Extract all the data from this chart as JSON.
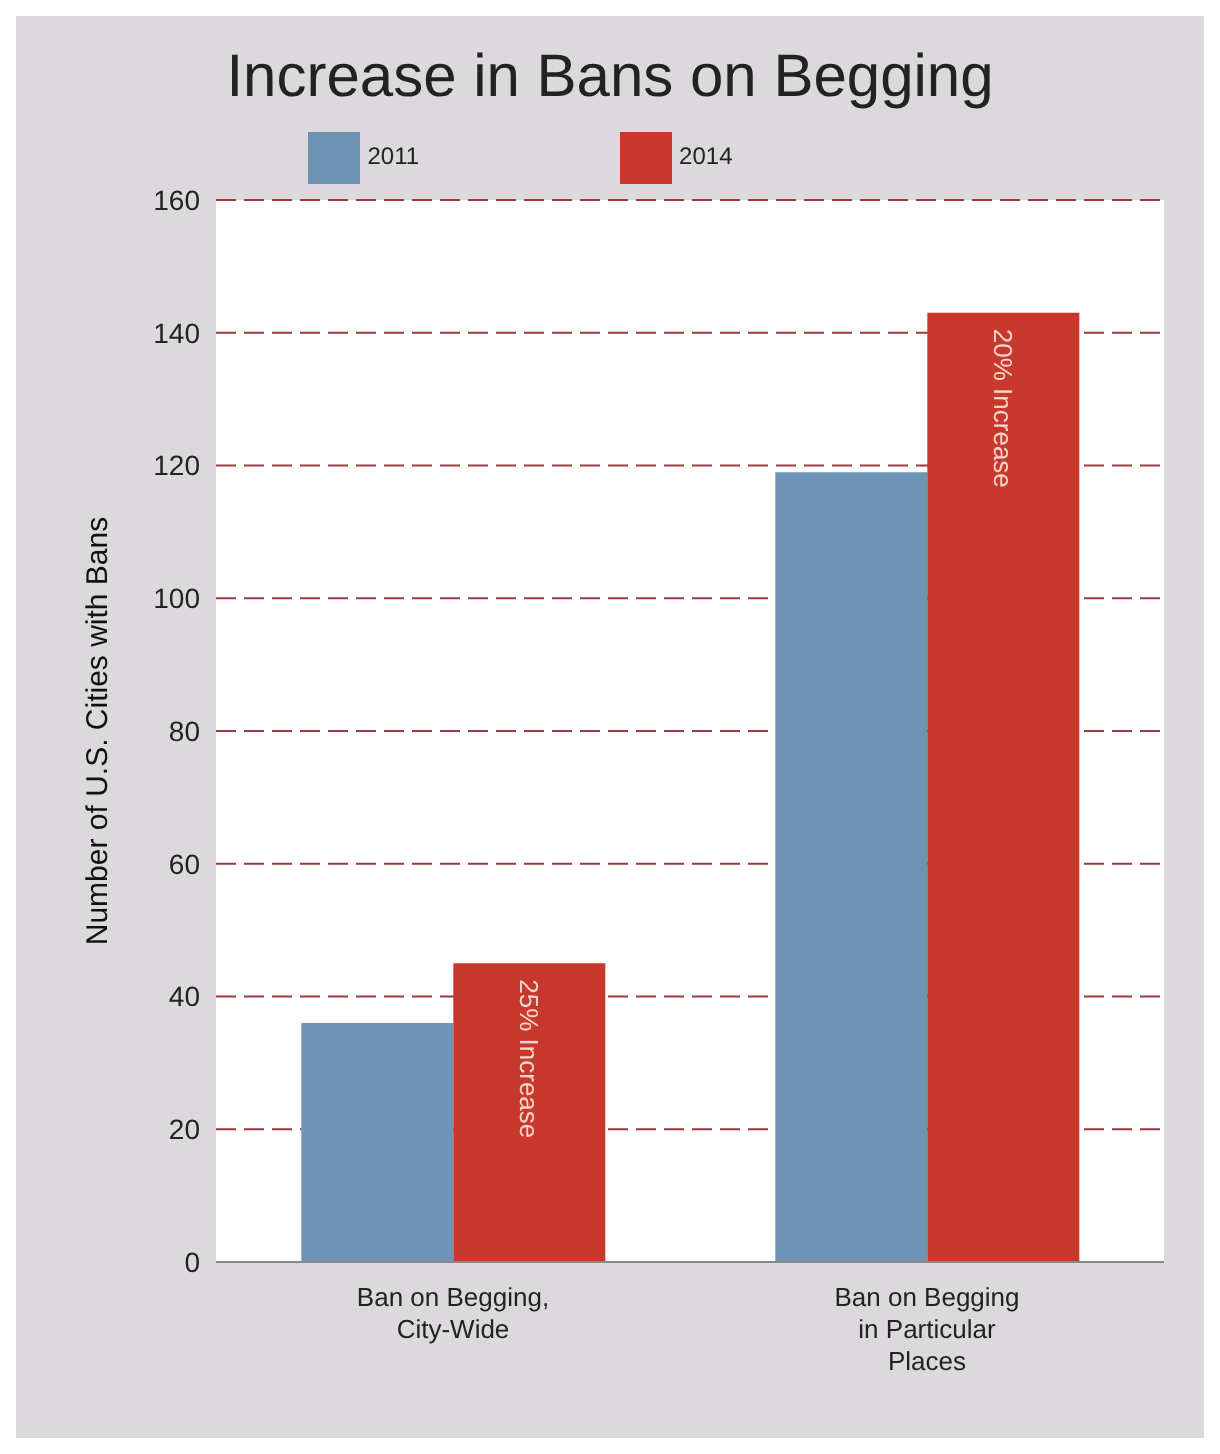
{
  "chart_data": {
    "type": "bar",
    "title": "Increase in Bans on Begging",
    "ylabel": "Number of U.S. Cities with Bans",
    "categories": [
      "Ban on Begging,\nCity-Wide",
      "Ban on Begging\nin Particular\nPlaces"
    ],
    "series": [
      {
        "name": "2011",
        "color": "#6f93b4",
        "values": [
          36,
          119
        ]
      },
      {
        "name": "2014",
        "color": "#c8382c",
        "values": [
          45,
          143
        ]
      }
    ],
    "annotations": [
      {
        "text": "25% Increase",
        "x": "Ban on Begging,\nCity-Wide",
        "y": 45
      },
      {
        "text": "20% Increase",
        "x": "Ban on Begging\nin Particular\nPlaces",
        "y": 143
      }
    ],
    "ylim": [
      0,
      160
    ],
    "yticks": [
      0,
      20,
      40,
      60,
      80,
      100,
      120,
      140,
      160
    ],
    "grid": "y",
    "legend": "top"
  }
}
